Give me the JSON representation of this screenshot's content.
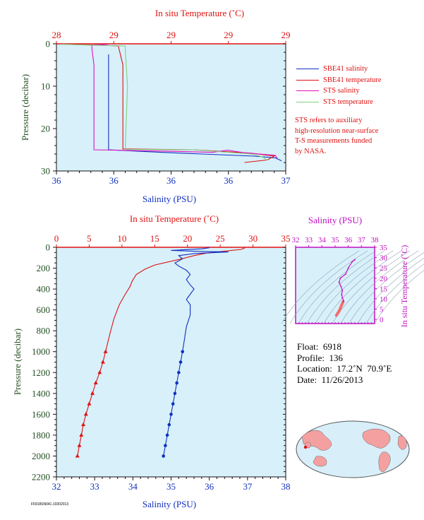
{
  "colors": {
    "panel_bg": "#d7f0fa",
    "temperature": "#e01010",
    "salinity": "#1030c0",
    "sts_salinity": "#e010c0",
    "sts_temperature": "#80d080",
    "axis_text": "#234f23",
    "inset": "#c010c0"
  },
  "chart_data": [
    {
      "type": "line",
      "panel": "top",
      "title_top_axis": "In situ Temperature (˚C)",
      "xlabel": "Salinity (PSU)",
      "ylabel": "Pressure (decibar)",
      "top_ticks": [
        "28",
        "29",
        "29",
        "29",
        "29"
      ],
      "bottom_ticks": [
        "36",
        "36",
        "36",
        "36",
        "37"
      ],
      "y_ticks": [
        "0",
        "10",
        "20",
        "30"
      ],
      "ylim": [
        0,
        30
      ],
      "temp_lim": [
        28.0,
        29.0
      ],
      "sal_lim": [
        35.9,
        37.0
      ],
      "series": [
        {
          "name": "SBE41 salinity",
          "var": "sal",
          "points": [
            [
              36.15,
              2.5
            ],
            [
              36.15,
              25
            ],
            [
              36.4,
              25.6
            ],
            [
              36.6,
              26
            ],
            [
              36.85,
              26.5
            ],
            [
              36.95,
              26.9
            ],
            [
              36.98,
              27.6
            ]
          ]
        },
        {
          "name": "SBE41 temperature",
          "var": "temp",
          "points": [
            [
              28.02,
              0.1
            ],
            [
              28.18,
              0.3
            ],
            [
              28.27,
              0.5
            ],
            [
              28.29,
              5
            ],
            [
              28.29,
              24.8
            ],
            [
              28.6,
              25
            ],
            [
              28.85,
              25.8
            ],
            [
              28.95,
              26.5
            ],
            [
              28.92,
              27.4
            ],
            [
              28.82,
              28
            ]
          ]
        },
        {
          "name": "STS salinity",
          "var": "sal",
          "points": [
            [
              36.15,
              0.1
            ],
            [
              36.07,
              0.3
            ],
            [
              36.07,
              1
            ],
            [
              36.08,
              5
            ],
            [
              36.08,
              25
            ],
            [
              36.4,
              25.3
            ],
            [
              36.65,
              25.6
            ],
            [
              36.72,
              25.1
            ],
            [
              36.8,
              25.7
            ],
            [
              36.95,
              26.3
            ],
            [
              36.96,
              27.1
            ]
          ]
        },
        {
          "name": "STS temperature",
          "var": "temp",
          "points": [
            [
              28.02,
              0.1
            ],
            [
              28.14,
              0.3
            ],
            [
              28.3,
              0.5
            ],
            [
              28.3,
              1
            ],
            [
              28.31,
              10
            ],
            [
              28.3,
              24.9
            ],
            [
              28.6,
              25
            ],
            [
              28.85,
              26.0
            ],
            [
              28.9,
              26.7
            ],
            [
              28.92,
              27.5
            ]
          ]
        }
      ],
      "legend_position": "right"
    },
    {
      "type": "line",
      "panel": "bottom",
      "title_top_axis": "In situ Temperature (˚C)",
      "xlabel": "Salinity (PSU)",
      "ylabel": "Pressure (decibar)",
      "top_ticks": [
        "0",
        "5",
        "10",
        "15",
        "20",
        "25",
        "30",
        "35"
      ],
      "bottom_ticks": [
        "32",
        "33",
        "34",
        "35",
        "36",
        "37",
        "38"
      ],
      "y_ticks": [
        "0",
        "200",
        "400",
        "600",
        "800",
        "1000",
        "1200",
        "1400",
        "1600",
        "1800",
        "2000",
        "2200"
      ],
      "ylim": [
        0,
        2200
      ],
      "temp_lim": [
        0,
        35
      ],
      "sal_lim": [
        32,
        38
      ],
      "series": [
        {
          "var": "temp",
          "markers": "triangle",
          "points": [
            [
              28.8,
              5
            ],
            [
              28.2,
              20
            ],
            [
              26,
              35
            ],
            [
              23,
              55
            ],
            [
              21,
              80
            ],
            [
              18.5,
              120
            ],
            [
              15,
              170
            ],
            [
              13.5,
              210
            ],
            [
              12.2,
              260
            ],
            [
              11.6,
              320
            ],
            [
              11.2,
              380
            ],
            [
              10.5,
              450
            ],
            [
              9.6,
              550
            ],
            [
              8.8,
              680
            ],
            [
              8.2,
              820
            ],
            [
              7.5,
              1000
            ],
            [
              7.1,
              1100
            ],
            [
              6.6,
              1200
            ],
            [
              6.0,
              1300
            ],
            [
              5.5,
              1400
            ],
            [
              5.0,
              1500
            ],
            [
              4.5,
              1600
            ],
            [
              4.1,
              1700
            ],
            [
              3.8,
              1800
            ],
            [
              3.5,
              1900
            ],
            [
              3.2,
              2000
            ]
          ]
        },
        {
          "var": "sal",
          "markers": "circle",
          "points": [
            [
              36.0,
              5
            ],
            [
              35.8,
              15
            ],
            [
              35.0,
              30
            ],
            [
              35.8,
              40
            ],
            [
              36.5,
              45
            ],
            [
              35.6,
              60
            ],
            [
              35.2,
              80
            ],
            [
              35.3,
              110
            ],
            [
              35.1,
              150
            ],
            [
              35.2,
              180
            ],
            [
              35.4,
              220
            ],
            [
              35.5,
              260
            ],
            [
              35.4,
              310
            ],
            [
              35.5,
              360
            ],
            [
              35.6,
              400
            ],
            [
              35.5,
              450
            ],
            [
              35.4,
              500
            ],
            [
              35.5,
              550
            ],
            [
              35.5,
              650
            ],
            [
              35.4,
              760
            ],
            [
              35.35,
              880
            ],
            [
              35.3,
              1000
            ],
            [
              35.25,
              1100
            ],
            [
              35.2,
              1200
            ],
            [
              35.15,
              1300
            ],
            [
              35.1,
              1400
            ],
            [
              35.05,
              1500
            ],
            [
              35.0,
              1600
            ],
            [
              34.95,
              1700
            ],
            [
              34.9,
              1800
            ],
            [
              34.85,
              1900
            ],
            [
              34.8,
              2000
            ]
          ]
        }
      ]
    },
    {
      "type": "scatter",
      "panel": "inset",
      "title_top_axis": "Salinity (PSU)",
      "ylabel": "In situ Temperature (˚C)",
      "top_ticks": [
        "32",
        "33",
        "34",
        "35",
        "36",
        "37",
        "38"
      ],
      "y_ticks": [
        "0",
        "5",
        "10",
        "15",
        "20",
        "25",
        "30",
        "35"
      ],
      "xlim": [
        32,
        38
      ],
      "ylim": [
        -2,
        35
      ],
      "points": [
        [
          35.1,
          2
        ],
        [
          35.2,
          3
        ],
        [
          35.3,
          4
        ],
        [
          35.4,
          5.5
        ],
        [
          35.5,
          7
        ],
        [
          35.6,
          8.5
        ],
        [
          35.65,
          9
        ],
        [
          35.55,
          10.5
        ],
        [
          35.5,
          12
        ],
        [
          35.55,
          14
        ],
        [
          35.45,
          16
        ],
        [
          35.3,
          18
        ],
        [
          35.4,
          20
        ],
        [
          35.8,
          22
        ],
        [
          36.0,
          25
        ],
        [
          36.3,
          28
        ],
        [
          36.5,
          29
        ]
      ]
    }
  ],
  "legend": [
    {
      "label": "SBE41 salinity",
      "color": "#1030c0"
    },
    {
      "label": "SBE41 temperature",
      "color": "#e01010"
    },
    {
      "label": "STS salinity",
      "color": "#e010c0"
    },
    {
      "label": "STS temperature",
      "color": "#80d080"
    }
  ],
  "note_lines": [
    "STS refers to auxiliary",
    "high-resolution near-surface",
    "T-S measurements funded",
    "by NASA."
  ],
  "info": {
    "float": "Float:  6918",
    "profile": "Profile:  136",
    "location": "Location:  17.2˚N  70.9˚E",
    "date": "Date:  11/26/2013"
  },
  "map": {
    "ocean": "#d8effa",
    "land": "#f4a0a0",
    "marker": "#e01010"
  },
  "footer_id": "F6918SN041.10302013"
}
